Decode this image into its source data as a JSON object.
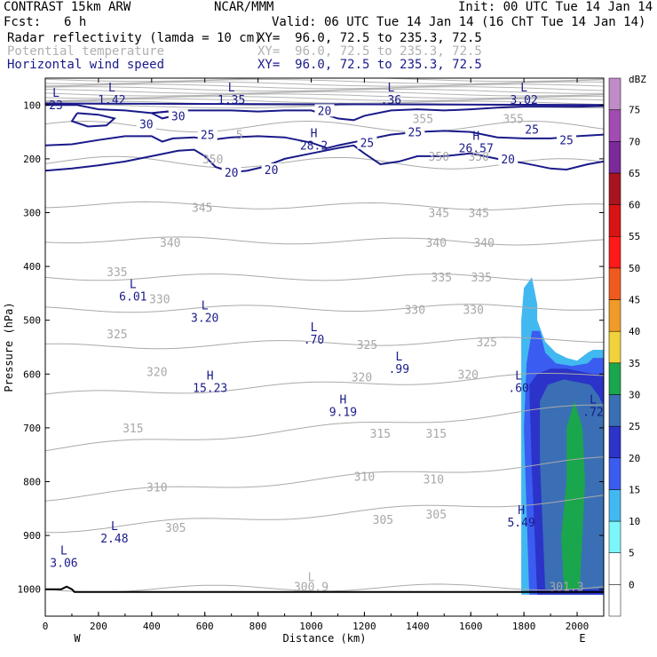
{
  "header": {
    "model": "CONTRAST 15km ARW",
    "org": "NCAR/MMM",
    "init": "Init: 00 UTC Tue 14 Jan 14",
    "fcst_label": "Fcst:",
    "fcst_value": "6 h",
    "valid": "Valid: 06 UTC Tue 14 Jan 14 (16 ChT Tue 14 Jan 14)",
    "fields": [
      {
        "name": "Radar reflectivity (lamda = 10 cm)",
        "xy": "XY=  96.0, 72.5 to 235.3, 72.5",
        "color": "#000000"
      },
      {
        "name": "Potential temperature",
        "xy": "XY=  96.0, 72.5 to 235.3, 72.5",
        "color": "#b0b0b0"
      },
      {
        "name": "Horizontal wind speed",
        "xy": "XY=  96.0, 72.5 to 235.3, 72.5",
        "color": "#1a1a8a"
      }
    ]
  },
  "chart_data": {
    "type": "cross-section",
    "xlabel": "Distance (km)",
    "ylabel": "Pressure (hPa)",
    "xlim": [
      0,
      2100
    ],
    "ylim": [
      1050,
      50
    ],
    "x_ticks": [
      0,
      200,
      400,
      600,
      800,
      1000,
      1200,
      1400,
      1600,
      1800,
      2000
    ],
    "y_ticks": [
      100,
      200,
      300,
      400,
      500,
      600,
      700,
      800,
      900,
      1000
    ],
    "endpoints": {
      "left": "W",
      "right": "E"
    },
    "colorbar": {
      "unit": "dBZ",
      "levels": [
        0,
        5,
        10,
        15,
        20,
        25,
        30,
        35,
        40,
        45,
        50,
        55,
        60,
        65,
        70,
        75
      ],
      "colors": [
        "#ffffff",
        "#ffffff",
        "#7df6fb",
        "#42b8f0",
        "#3a5cf0",
        "#2b33c8",
        "#3a6fb5",
        "#1aa64c",
        "#f0d23a",
        "#f09a2a",
        "#f05a1e",
        "#ff1a1a",
        "#d81414",
        "#a8141e",
        "#7a2a9a",
        "#a04cb0",
        "#c08cc8"
      ]
    },
    "theta_isentropes": [
      {
        "value": 300,
        "p_start": 1000,
        "p_end": 995
      },
      {
        "value": 305,
        "p_start": 890,
        "p_end": 830
      },
      {
        "value": 310,
        "p_start": 830,
        "p_end": 760
      },
      {
        "value": 315,
        "p_start": 740,
        "p_end": 660
      },
      {
        "value": 320,
        "p_start": 640,
        "p_end": 600
      },
      {
        "value": 325,
        "p_start": 550,
        "p_end": 535
      },
      {
        "value": 330,
        "p_start": 480,
        "p_end": 475
      },
      {
        "value": 335,
        "p_start": 420,
        "p_end": 420
      },
      {
        "value": 340,
        "p_start": 350,
        "p_end": 355
      },
      {
        "value": 345,
        "p_start": 285,
        "p_end": 290
      },
      {
        "value": 350,
        "p_start": 205,
        "p_end": 210
      },
      {
        "value": 355,
        "p_start": 140,
        "p_end": 140
      }
    ],
    "theta_labels": [
      {
        "text": "300.9",
        "x": 1000,
        "p": 995
      },
      {
        "text": "301.3",
        "x": 1960,
        "p": 995
      },
      {
        "text": "305",
        "x": 490,
        "p": 885
      },
      {
        "text": "305",
        "x": 1270,
        "p": 870
      },
      {
        "text": "305",
        "x": 1470,
        "p": 860
      },
      {
        "text": "310",
        "x": 420,
        "p": 810
      },
      {
        "text": "310",
        "x": 1200,
        "p": 790
      },
      {
        "text": "310",
        "x": 1460,
        "p": 795
      },
      {
        "text": "315",
        "x": 330,
        "p": 700
      },
      {
        "text": "315",
        "x": 1260,
        "p": 710
      },
      {
        "text": "315",
        "x": 1470,
        "p": 710
      },
      {
        "text": "320",
        "x": 420,
        "p": 595
      },
      {
        "text": "320",
        "x": 1190,
        "p": 605
      },
      {
        "text": "320",
        "x": 1590,
        "p": 600
      },
      {
        "text": "325",
        "x": 270,
        "p": 525
      },
      {
        "text": "325",
        "x": 1210,
        "p": 545
      },
      {
        "text": "325",
        "x": 1660,
        "p": 540
      },
      {
        "text": "330",
        "x": 430,
        "p": 460
      },
      {
        "text": "330",
        "x": 1390,
        "p": 480
      },
      {
        "text": "330",
        "x": 1610,
        "p": 480
      },
      {
        "text": "335",
        "x": 270,
        "p": 410
      },
      {
        "text": "335",
        "x": 1490,
        "p": 420
      },
      {
        "text": "335",
        "x": 1640,
        "p": 420
      },
      {
        "text": "340",
        "x": 470,
        "p": 355
      },
      {
        "text": "340",
        "x": 1470,
        "p": 355
      },
      {
        "text": "340",
        "x": 1650,
        "p": 355
      },
      {
        "text": "345",
        "x": 590,
        "p": 290
      },
      {
        "text": "345",
        "x": 1480,
        "p": 300
      },
      {
        "text": "345",
        "x": 1630,
        "p": 300
      },
      {
        "text": "350",
        "x": 630,
        "p": 200
      },
      {
        "text": "350",
        "x": 1480,
        "p": 195
      },
      {
        "text": "350",
        "x": 1630,
        "p": 195
      },
      {
        "text": "355",
        "x": 1420,
        "p": 125
      },
      {
        "text": "355",
        "x": 1760,
        "p": 125
      },
      {
        "text": "5",
        "x": 730,
        "p": 155
      }
    ],
    "wind_contours": [
      {
        "value": 20,
        "points": [
          [
            0,
            222
          ],
          [
            100,
            218
          ],
          [
            200,
            212
          ],
          [
            300,
            205
          ],
          [
            400,
            195
          ],
          [
            500,
            185
          ],
          [
            560,
            183
          ],
          [
            600,
            195
          ],
          [
            640,
            215
          ],
          [
            700,
            225
          ],
          [
            760,
            222
          ],
          [
            820,
            215
          ],
          [
            900,
            200
          ],
          [
            1000,
            190
          ],
          [
            1100,
            180
          ],
          [
            1160,
            175
          ],
          [
            1200,
            190
          ],
          [
            1260,
            210
          ],
          [
            1330,
            205
          ],
          [
            1400,
            195
          ],
          [
            1500,
            195
          ],
          [
            1600,
            190
          ],
          [
            1700,
            200
          ],
          [
            1800,
            208
          ],
          [
            1900,
            218
          ],
          [
            1960,
            220
          ],
          [
            2040,
            210
          ],
          [
            2100,
            205
          ]
        ]
      },
      {
        "value": 25,
        "points": [
          [
            0,
            175
          ],
          [
            100,
            173
          ],
          [
            200,
            165
          ],
          [
            300,
            158
          ],
          [
            400,
            158
          ],
          [
            440,
            168
          ],
          [
            480,
            162
          ],
          [
            560,
            160
          ],
          [
            620,
            165
          ],
          [
            700,
            160
          ],
          [
            800,
            158
          ],
          [
            900,
            160
          ],
          [
            1000,
            170
          ],
          [
            1060,
            180
          ],
          [
            1100,
            175
          ],
          [
            1200,
            165
          ],
          [
            1300,
            155
          ],
          [
            1400,
            150
          ],
          [
            1500,
            148
          ],
          [
            1600,
            150
          ],
          [
            1700,
            160
          ],
          [
            1800,
            162
          ],
          [
            1900,
            162
          ],
          [
            2000,
            158
          ],
          [
            2100,
            155
          ]
        ]
      },
      {
        "value": 20,
        "points": [
          [
            0,
            100
          ],
          [
            120,
            100
          ],
          [
            200,
            108
          ],
          [
            300,
            110
          ],
          [
            400,
            115
          ],
          [
            500,
            110
          ],
          [
            600,
            110
          ],
          [
            700,
            110
          ],
          [
            800,
            112
          ],
          [
            900,
            110
          ],
          [
            1000,
            110
          ],
          [
            1100,
            125
          ],
          [
            1160,
            128
          ],
          [
            1200,
            120
          ],
          [
            1300,
            110
          ],
          [
            1400,
            108
          ],
          [
            1500,
            110
          ],
          [
            1600,
            108
          ],
          [
            1700,
            105
          ],
          [
            1800,
            103
          ],
          [
            1900,
            103
          ],
          [
            2000,
            103
          ],
          [
            2100,
            102
          ]
        ]
      },
      {
        "value": 30,
        "points": [
          [
            120,
            115
          ],
          [
            200,
            118
          ],
          [
            260,
            125
          ],
          [
            230,
            138
          ],
          [
            160,
            140
          ],
          [
            100,
            130
          ],
          [
            120,
            115
          ]
        ]
      },
      {
        "value": 30,
        "points": [
          [
            400,
            115
          ],
          [
            460,
            112
          ],
          [
            500,
            118
          ],
          [
            440,
            125
          ],
          [
            400,
            115
          ]
        ]
      }
    ],
    "wind_labels": [
      {
        "text": "20",
        "x": 700,
        "p": 225
      },
      {
        "text": "20",
        "x": 850,
        "p": 220
      },
      {
        "text": "20",
        "x": 1050,
        "p": 110
      },
      {
        "text": "20",
        "x": 1740,
        "p": 200
      },
      {
        "text": "25",
        "x": 610,
        "p": 155
      },
      {
        "text": "25",
        "x": 1210,
        "p": 170
      },
      {
        "text": "25",
        "x": 1390,
        "p": 150
      },
      {
        "text": "25",
        "x": 1830,
        "p": 145
      },
      {
        "text": "25",
        "x": 1960,
        "p": 165
      },
      {
        "text": "30",
        "x": 500,
        "p": 120
      },
      {
        "text": "30",
        "x": 380,
        "p": 135
      }
    ],
    "extrema": [
      {
        "type": "L",
        "value": "1.42",
        "x": 250,
        "p": 75,
        "color": "#1a1a8a"
      },
      {
        "type": "L",
        "value": "1.35",
        "x": 700,
        "p": 75,
        "color": "#1a1a8a"
      },
      {
        "type": "L",
        "value": ".36",
        "x": 1300,
        "p": 75,
        "color": "#1a1a8a"
      },
      {
        "type": "L",
        "value": "3.02",
        "x": 1800,
        "p": 75,
        "color": "#1a1a8a"
      },
      {
        "type": "L",
        "value": "23",
        "x": 40,
        "p": 85,
        "color": "#1a1a8a"
      },
      {
        "type": "H",
        "value": "28.2",
        "x": 1010,
        "p": 160,
        "color": "#1a1a8a"
      },
      {
        "type": "H",
        "value": "26.57",
        "x": 1620,
        "p": 165,
        "color": "#1a1a8a"
      },
      {
        "type": "L",
        "value": "6.01",
        "x": 330,
        "p": 440,
        "color": "#1a1a8a"
      },
      {
        "type": "L",
        "value": "3.20",
        "x": 600,
        "p": 480,
        "color": "#1a1a8a"
      },
      {
        "type": "L",
        "value": ".70",
        "x": 1010,
        "p": 520,
        "color": "#1a1a8a"
      },
      {
        "type": "L",
        "value": ".99",
        "x": 1330,
        "p": 575,
        "color": "#1a1a8a"
      },
      {
        "type": "H",
        "value": "15.23",
        "x": 620,
        "p": 610,
        "color": "#1a1a8a"
      },
      {
        "type": "H",
        "value": "9.19",
        "x": 1120,
        "p": 655,
        "color": "#1a1a8a"
      },
      {
        "type": "L",
        "value": ".60",
        "x": 1780,
        "p": 610,
        "color": "#1a1a8a"
      },
      {
        "type": "L",
        "value": ".72",
        "x": 2060,
        "p": 655,
        "color": "#1a1a8a"
      },
      {
        "type": "H",
        "value": "5.49",
        "x": 1790,
        "p": 860,
        "color": "#1a1a8a"
      },
      {
        "type": "L",
        "value": "2.48",
        "x": 260,
        "p": 890,
        "color": "#1a1a8a"
      },
      {
        "type": "L",
        "value": "3.06",
        "x": 70,
        "p": 935,
        "color": "#1a1a8a"
      },
      {
        "type": "L",
        "value": "",
        "x": 1000,
        "p": 985,
        "color": "#b0b0b0"
      }
    ],
    "reflectivity": [
      {
        "dbz": 5,
        "polygon": [
          [
            1790,
            1010
          ],
          [
            1790,
            500
          ],
          [
            1800,
            440
          ],
          [
            1830,
            420
          ],
          [
            1850,
            470
          ],
          [
            1850,
            500
          ],
          [
            1880,
            540
          ],
          [
            1920,
            560
          ],
          [
            1960,
            570
          ],
          [
            2000,
            575
          ],
          [
            2040,
            560
          ],
          [
            2060,
            555
          ],
          [
            2100,
            555
          ],
          [
            2100,
            1010
          ]
        ]
      },
      {
        "dbz": 10,
        "polygon": [
          [
            1820,
            1010
          ],
          [
            1800,
            700
          ],
          [
            1810,
            580
          ],
          [
            1830,
            520
          ],
          [
            1860,
            520
          ],
          [
            1880,
            560
          ],
          [
            1920,
            580
          ],
          [
            1980,
            585
          ],
          [
            2040,
            580
          ],
          [
            2060,
            570
          ],
          [
            2100,
            570
          ],
          [
            2100,
            1010
          ]
        ]
      },
      {
        "dbz": 15,
        "polygon": [
          [
            1850,
            1010
          ],
          [
            1830,
            780
          ],
          [
            1820,
            620
          ],
          [
            1850,
            600
          ],
          [
            1900,
            590
          ],
          [
            1960,
            590
          ],
          [
            2010,
            595
          ],
          [
            2060,
            600
          ],
          [
            2100,
            600
          ],
          [
            2100,
            1010
          ]
        ]
      },
      {
        "dbz": 20,
        "polygon": [
          [
            1880,
            1000
          ],
          [
            1860,
            760
          ],
          [
            1860,
            650
          ],
          [
            1890,
            620
          ],
          [
            1950,
            610
          ],
          [
            2000,
            615
          ],
          [
            2050,
            620
          ],
          [
            2080,
            640
          ],
          [
            2100,
            660
          ],
          [
            2100,
            1000
          ]
        ]
      },
      {
        "dbz": 25,
        "polygon": [
          [
            1950,
            1000
          ],
          [
            1940,
            900
          ],
          [
            1960,
            800
          ],
          [
            1960,
            700
          ],
          [
            1990,
            650
          ],
          [
            2020,
            700
          ],
          [
            2030,
            800
          ],
          [
            2020,
            900
          ],
          [
            2010,
            1000
          ]
        ]
      }
    ],
    "terrain": [
      [
        0,
        1000
      ],
      [
        60,
        1000
      ],
      [
        80,
        995
      ],
      [
        100,
        1000
      ],
      [
        110,
        1005
      ],
      [
        2100,
        1005
      ]
    ]
  }
}
